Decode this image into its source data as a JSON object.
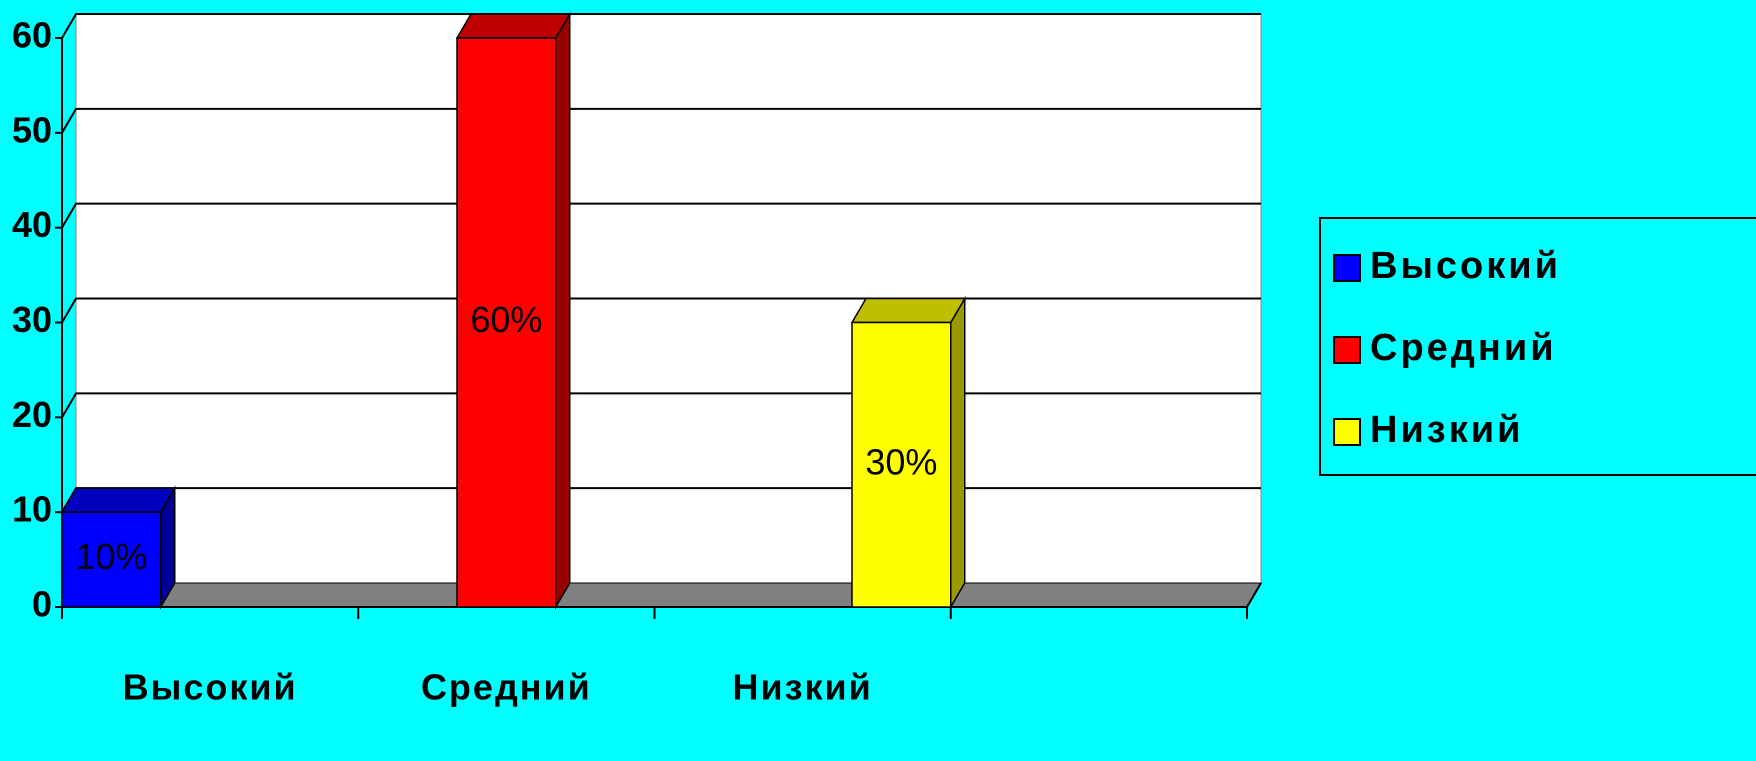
{
  "chart_data": {
    "type": "bar",
    "categories": [
      "Высокий",
      "Средний",
      "Низкий",
      null
    ],
    "series": [
      {
        "name": "Высокий",
        "color": "#0000ff",
        "values": [
          10,
          null,
          null,
          null
        ],
        "value_labels": [
          "10%",
          null,
          null,
          null
        ]
      },
      {
        "name": "Средний",
        "color": "#ff0000",
        "values": [
          null,
          60,
          null,
          null
        ],
        "value_labels": [
          null,
          "60%",
          null,
          null
        ]
      },
      {
        "name": "Низкий",
        "color": "#ffff00",
        "values": [
          null,
          null,
          30,
          null
        ],
        "value_labels": [
          null,
          null,
          "30%",
          null
        ]
      }
    ],
    "ylim": [
      0,
      60
    ],
    "yticks": [
      0,
      10,
      20,
      30,
      40,
      50,
      60
    ],
    "grid": true,
    "legend": "right"
  }
}
